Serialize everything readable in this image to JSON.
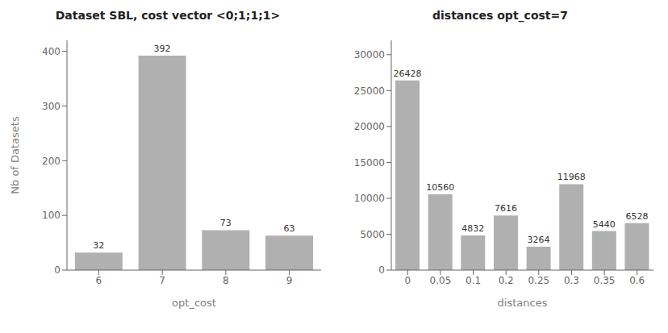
{
  "chart_data": [
    {
      "type": "bar",
      "title": "Dataset SBL, cost vector <0;1;1;1>",
      "xlabel": "opt_cost",
      "ylabel": "Nb of Datasets",
      "categories": [
        "6",
        "7",
        "8",
        "9"
      ],
      "values": [
        32,
        392,
        73,
        63
      ],
      "color": "#b0b0b0",
      "ylim": [
        0,
        420
      ],
      "yticks": [
        0,
        100,
        200,
        300,
        400
      ],
      "grid": false,
      "data_labels": true
    },
    {
      "type": "bar",
      "title": "distances opt_cost=7",
      "xlabel": "distances",
      "categories": [
        "0",
        "0.05",
        "0.1",
        "0.2",
        "0.25",
        "0.3",
        "0.35",
        "0.6"
      ],
      "values": [
        26428,
        10560,
        4832,
        7616,
        3264,
        11968,
        5440,
        6528
      ],
      "color": "#b0b0b0",
      "ylim": [
        0,
        32000
      ],
      "yticks": [
        0,
        5000,
        10000,
        15000,
        20000,
        25000,
        30000
      ],
      "grid": false,
      "data_labels": true
    }
  ]
}
